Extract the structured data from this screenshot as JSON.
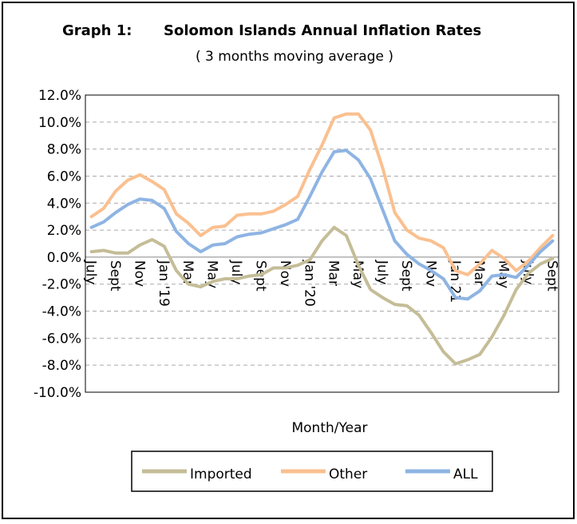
{
  "chart_data": {
    "type": "line",
    "graph_label": "Graph 1:",
    "title": "Solomon Islands Annual Inflation Rates",
    "subtitle": "( 3 months moving average )",
    "x_label": "Month/Year",
    "categories": [
      "July",
      null,
      "Sept",
      null,
      "Nov",
      null,
      "Jan '19",
      null,
      "Mar",
      null,
      "May",
      null,
      "July",
      null,
      "Sept",
      null,
      "Nov",
      null,
      "Jan '20",
      null,
      "Mar",
      null,
      "May",
      null,
      "July",
      null,
      "Sept",
      null,
      "Nov",
      null,
      "Jan 21",
      null,
      "Mar",
      null,
      "May",
      null,
      "July",
      null,
      "Sept"
    ],
    "series": [
      {
        "name": "Imported",
        "color": "#c4bd97",
        "values": [
          0.4,
          0.5,
          0.3,
          0.3,
          0.9,
          1.3,
          0.8,
          -1.0,
          -2.0,
          -2.2,
          -1.8,
          -1.6,
          -1.6,
          -1.4,
          -1.3,
          -0.8,
          -0.8,
          -0.6,
          -0.2,
          1.2,
          2.2,
          1.6,
          -0.6,
          -2.4,
          -3.0,
          -3.5,
          -3.6,
          -4.3,
          -5.6,
          -7.0,
          -7.9,
          -7.6,
          -7.2,
          -5.9,
          -4.3,
          -2.4,
          -1.2,
          -0.5,
          -0.1
        ]
      },
      {
        "name": "Other",
        "color": "#fac090",
        "values": [
          3.0,
          3.6,
          4.9,
          5.7,
          6.1,
          5.6,
          5.0,
          3.2,
          2.5,
          1.6,
          2.2,
          2.3,
          3.1,
          3.2,
          3.2,
          3.4,
          3.9,
          4.5,
          6.5,
          8.3,
          10.3,
          10.6,
          10.6,
          9.4,
          6.6,
          3.3,
          2.0,
          1.4,
          1.2,
          0.7,
          -1.0,
          -1.3,
          -0.5,
          0.5,
          -0.1,
          -1.0,
          -0.3,
          0.7,
          1.6
        ]
      },
      {
        "name": "ALL",
        "color": "#8eb4e3",
        "values": [
          2.2,
          2.6,
          3.3,
          3.9,
          4.3,
          4.2,
          3.6,
          1.9,
          1.0,
          0.4,
          0.9,
          1.0,
          1.5,
          1.7,
          1.8,
          2.1,
          2.4,
          2.8,
          4.5,
          6.3,
          7.8,
          7.9,
          7.2,
          5.8,
          3.5,
          1.2,
          0.2,
          -0.5,
          -1.0,
          -1.6,
          -3.0,
          -3.1,
          -2.5,
          -1.4,
          -1.3,
          -1.5,
          -0.6,
          0.4,
          1.2
        ]
      }
    ],
    "ylim": [
      -10,
      12
    ],
    "yticks": [
      {
        "value": -10,
        "label": "-10.0%"
      },
      {
        "value": -8,
        "label": "-8.0%"
      },
      {
        "value": -6,
        "label": "-6.0%"
      },
      {
        "value": -4,
        "label": "-4.0%"
      },
      {
        "value": -2,
        "label": "-2.0%"
      },
      {
        "value": 0,
        "label": "0.0%"
      },
      {
        "value": 2,
        "label": "2.0%"
      },
      {
        "value": 4,
        "label": "4.0%"
      },
      {
        "value": 6,
        "label": "6.0%"
      },
      {
        "value": 8,
        "label": "8.0%"
      },
      {
        "value": 10,
        "label": "10.0%"
      },
      {
        "value": 12,
        "label": "12.0%"
      }
    ],
    "grid": true,
    "legend": "bottom"
  }
}
